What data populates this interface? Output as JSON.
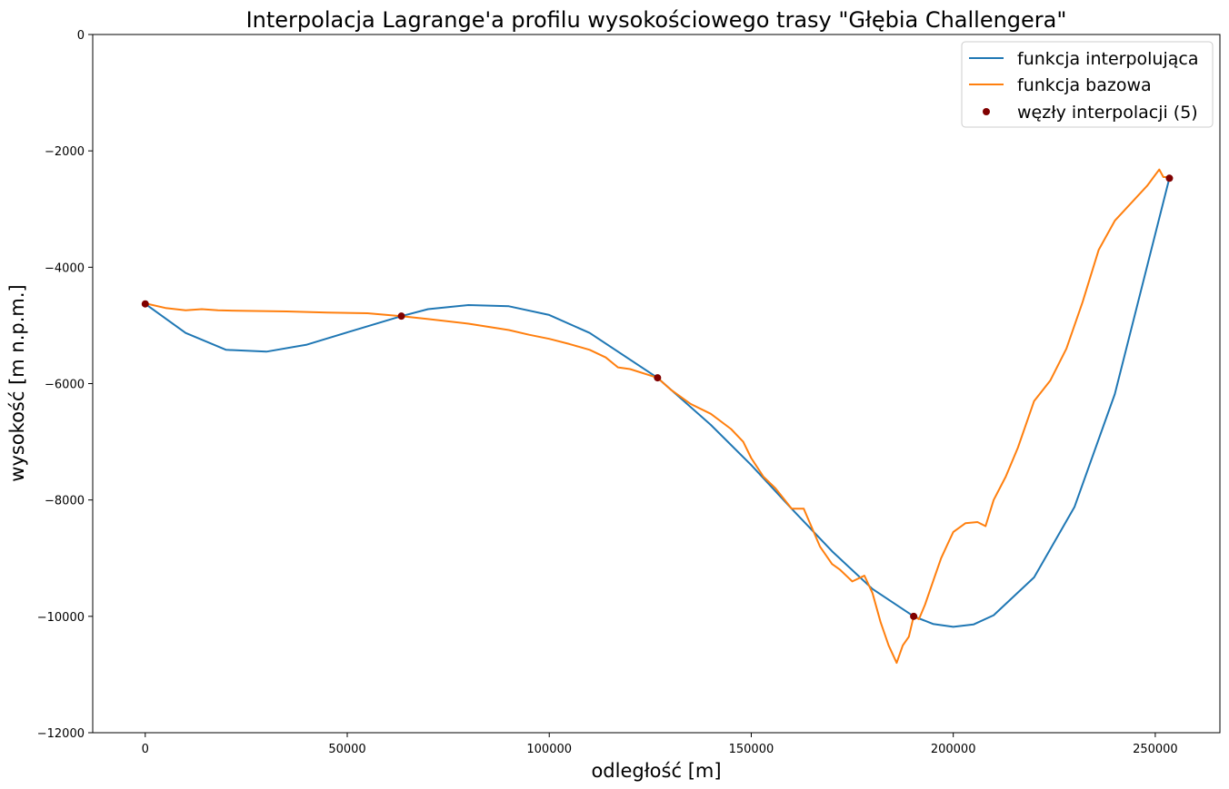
{
  "chart_data": {
    "type": "line",
    "title": "Interpolacja Lagrange'a profilu wysokościowego trasy \"Głębia Challengera\"",
    "xlabel": "odległość [m]",
    "ylabel": "wysokość [m n.p.m.]",
    "xlim": [
      -13000,
      266000
    ],
    "ylim": [
      -12000,
      0
    ],
    "xticks": [
      0,
      50000,
      100000,
      150000,
      200000,
      250000
    ],
    "yticks": [
      0,
      -2000,
      -4000,
      -6000,
      -8000,
      -10000,
      -12000
    ],
    "xtick_labels": [
      "0",
      "50000",
      "100000",
      "150000",
      "200000",
      "250000"
    ],
    "ytick_labels": [
      "0",
      "−2000",
      "−4000",
      "−6000",
      "−8000",
      "−10000",
      "−12000"
    ],
    "grid": false,
    "legend_position": "top-right",
    "colors": {
      "interp": "#1f77b4",
      "base": "#ff7f0e",
      "nodes": "#800000"
    },
    "series": [
      {
        "name": "funkcja interpolująca",
        "kind": "line",
        "color": "#1f77b4",
        "x": [
          0,
          10000,
          20000,
          30000,
          40000,
          50000,
          63400,
          70000,
          80000,
          90000,
          100000,
          110000,
          126800,
          140000,
          150000,
          160000,
          170000,
          180000,
          190200,
          195000,
          200000,
          205000,
          210000,
          220000,
          230000,
          240000,
          253500
        ],
        "y": [
          -4630,
          -5130,
          -5420,
          -5450,
          -5330,
          -5120,
          -4840,
          -4720,
          -4650,
          -4670,
          -4820,
          -5130,
          -5900,
          -6710,
          -7400,
          -8150,
          -8880,
          -9530,
          -10000,
          -10130,
          -10180,
          -10140,
          -9980,
          -9330,
          -8120,
          -6180,
          -2470
        ]
      },
      {
        "name": "funkcja bazowa",
        "kind": "line",
        "color": "#ff7f0e",
        "x": [
          0,
          5000,
          10000,
          14000,
          18000,
          25000,
          35000,
          45000,
          55000,
          63400,
          70000,
          80000,
          90000,
          95000,
          100000,
          105000,
          110000,
          114000,
          117000,
          120000,
          126800,
          130000,
          135000,
          140000,
          145000,
          148000,
          150000,
          153000,
          156000,
          160000,
          163000,
          167000,
          170000,
          172000,
          175000,
          178000,
          180000,
          182000,
          184000,
          186000,
          187500,
          189000,
          190200,
          191500,
          193000,
          195000,
          197000,
          199000,
          200000,
          203000,
          206000,
          208000,
          210000,
          213000,
          216000,
          220000,
          224000,
          228000,
          232000,
          236000,
          240000,
          244000,
          248000,
          251000,
          252000,
          253500
        ],
        "y": [
          -4620,
          -4700,
          -4740,
          -4720,
          -4740,
          -4750,
          -4760,
          -4780,
          -4790,
          -4840,
          -4890,
          -4970,
          -5080,
          -5160,
          -5230,
          -5320,
          -5420,
          -5550,
          -5720,
          -5750,
          -5900,
          -6100,
          -6350,
          -6520,
          -6780,
          -7000,
          -7280,
          -7600,
          -7800,
          -8150,
          -8150,
          -8800,
          -9100,
          -9200,
          -9400,
          -9300,
          -9600,
          -10100,
          -10500,
          -10800,
          -10500,
          -10350,
          -10000,
          -10050,
          -9800,
          -9400,
          -9000,
          -8700,
          -8550,
          -8400,
          -8380,
          -8450,
          -8000,
          -7600,
          -7100,
          -6300,
          -5950,
          -5400,
          -4600,
          -3700,
          -3200,
          -2900,
          -2600,
          -2320,
          -2450,
          -2450
        ]
      },
      {
        "name": "węzły interpolacji (5)",
        "kind": "scatter",
        "color": "#800000",
        "x": [
          0,
          63400,
          126800,
          190200,
          253500
        ],
        "y": [
          -4630,
          -4840,
          -5900,
          -10000,
          -2470
        ]
      }
    ]
  }
}
